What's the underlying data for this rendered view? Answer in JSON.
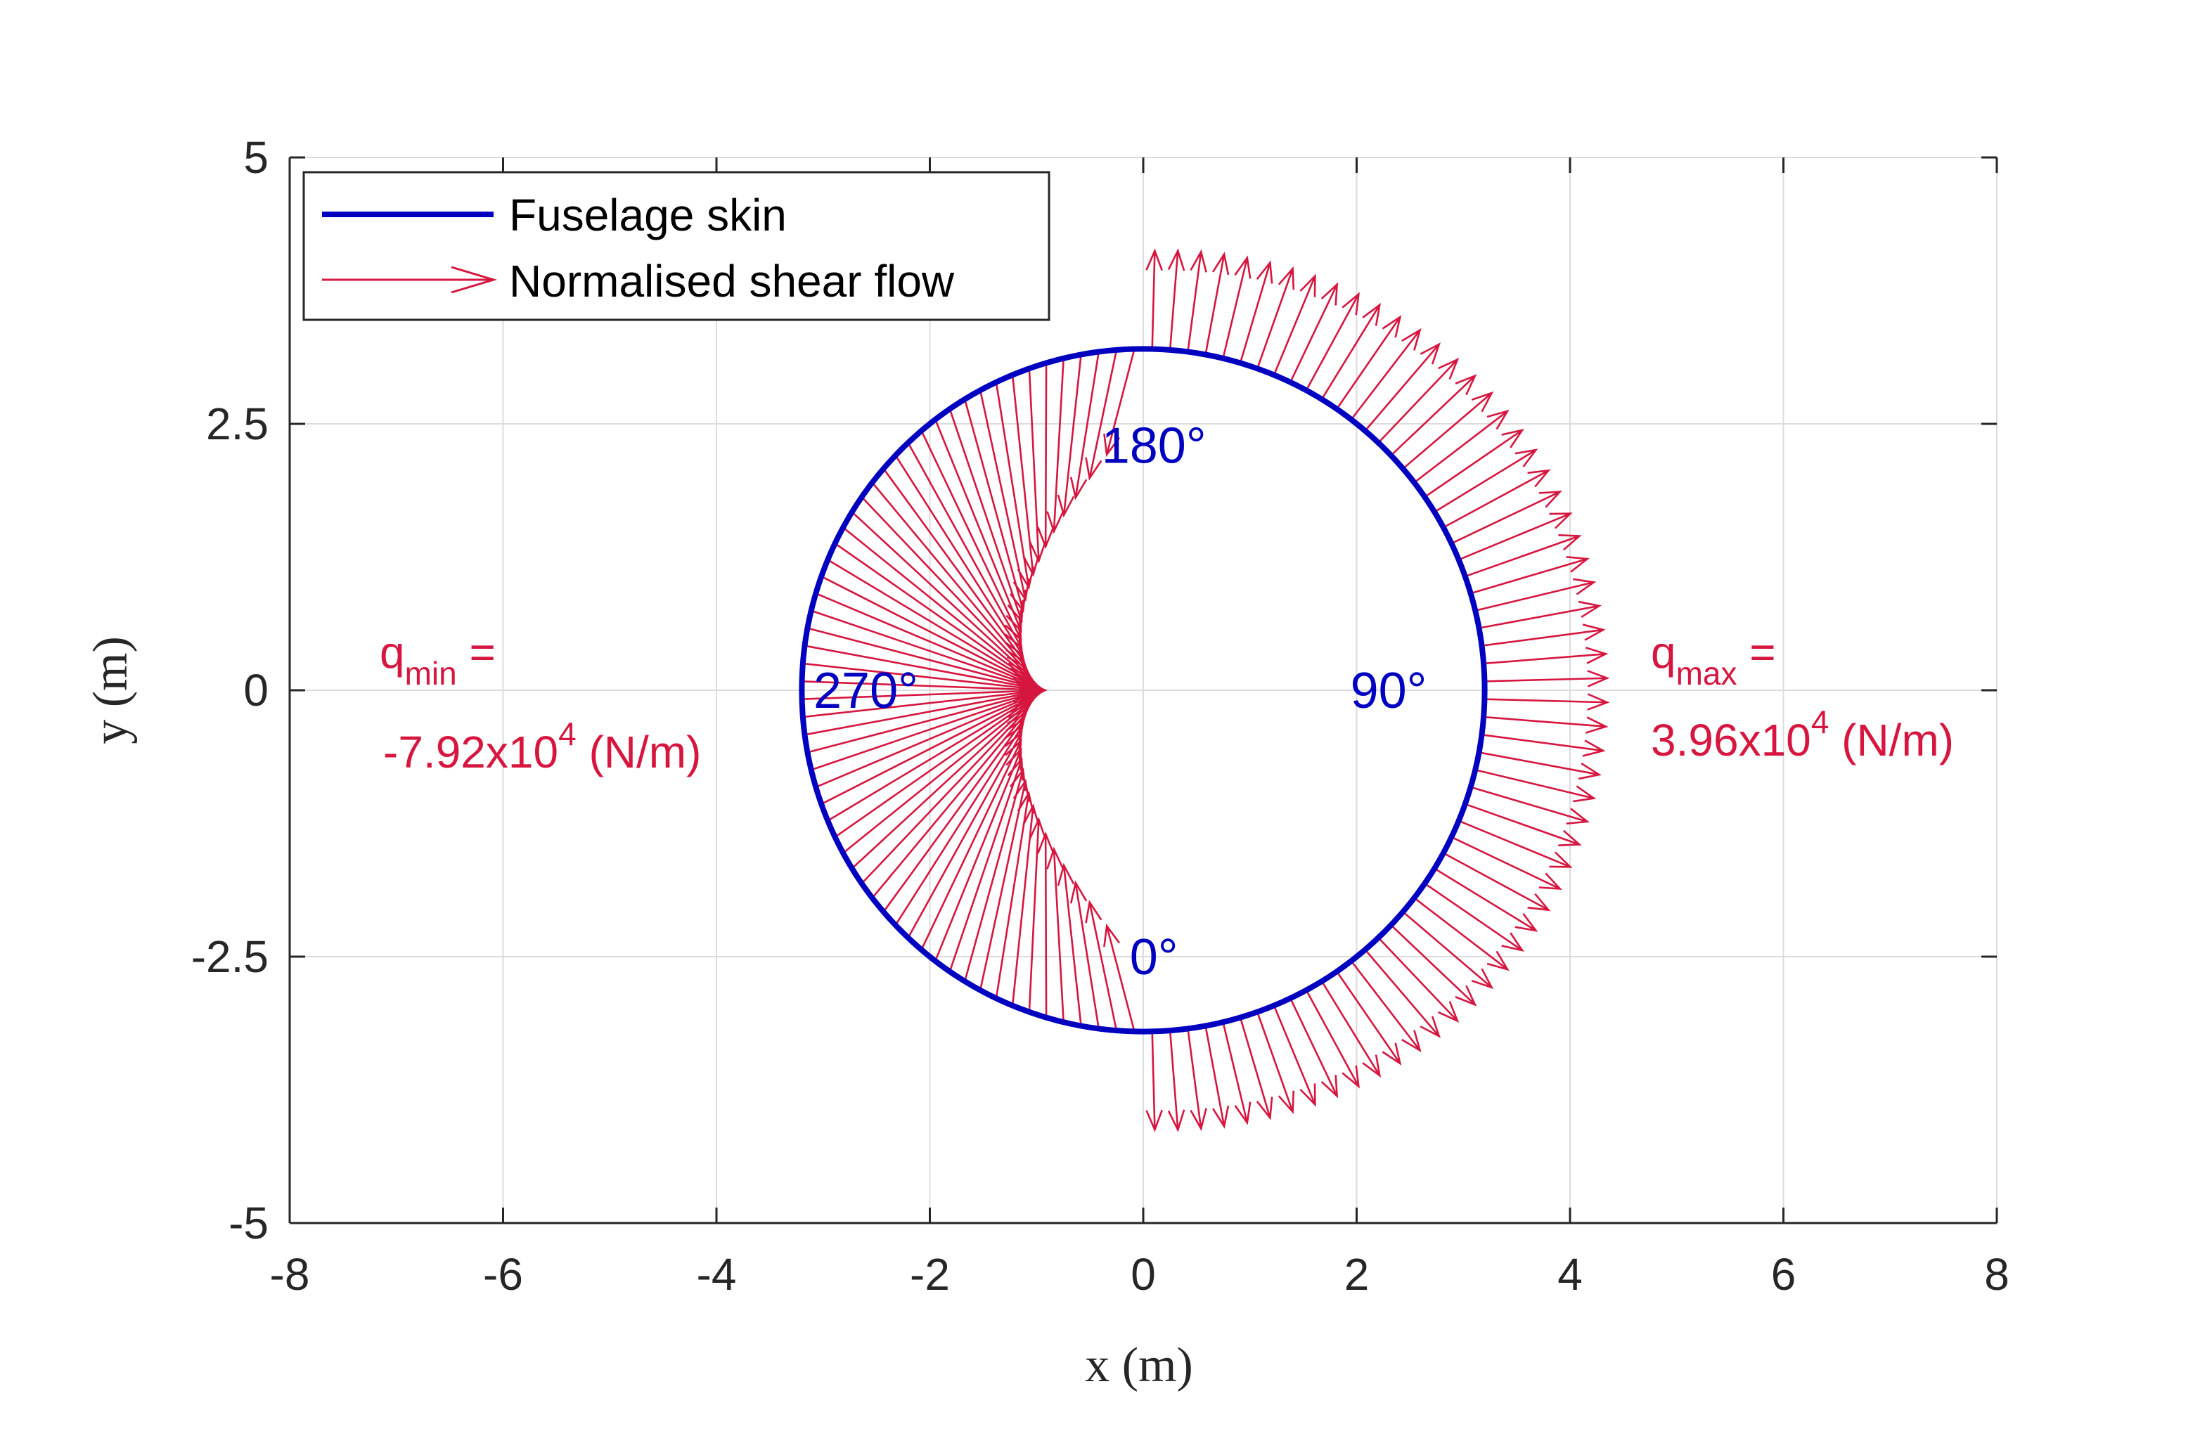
{
  "chart_data": {
    "type": "quiver",
    "xlabel": "x (m)",
    "ylabel": "y (m)",
    "xlim": [
      -8,
      8
    ],
    "ylim": [
      -5,
      5
    ],
    "xticks": [
      -8,
      -6,
      -4,
      -2,
      0,
      2,
      4,
      6,
      8
    ],
    "yticks": [
      -5,
      -2.5,
      0,
      2.5,
      5
    ],
    "xtick_labels": [
      "-8",
      "-6",
      "-4",
      "-2",
      "0",
      "2",
      "4",
      "6",
      "8"
    ],
    "ytick_labels": [
      "-5",
      "-2.5",
      "0",
      "2.5",
      "5"
    ],
    "grid": true,
    "legend": {
      "placement": "top-left",
      "entries": [
        "Fuselage skin",
        "Normalised shear flow"
      ]
    },
    "series": [
      {
        "name": "Fuselage skin",
        "kind": "circle",
        "center": [
          0,
          0
        ],
        "radius": 3.2,
        "color": "#0000C0"
      },
      {
        "name": "Normalised shear flow",
        "kind": "arrows",
        "color": "#D6163F",
        "count": 120,
        "center": [
          -0.92,
          0
        ],
        "outer_reach": 4.35
      }
    ],
    "annotations": {
      "angle_labels": [
        {
          "text": "180°",
          "at": [
            0.1,
            2.3
          ]
        },
        {
          "text": "270°",
          "at": [
            -2.6,
            0
          ]
        },
        {
          "text": "90°",
          "at": [
            2.3,
            0
          ]
        },
        {
          "text": "0°",
          "at": [
            0.1,
            -2.5
          ]
        }
      ],
      "q_min": {
        "symbol": "q",
        "subscript": "min",
        "equals": " =",
        "value": "-7.92x10",
        "exponent": "4",
        "unit": " (N/m)"
      },
      "q_max": {
        "symbol": "q",
        "subscript": "max",
        "equals": " =",
        "value": "3.96x10",
        "exponent": "4",
        "unit": " (N/m)"
      }
    },
    "colors": {
      "skin": "#0000C0",
      "arrows": "#D6163F",
      "grid": "#dcdcdc",
      "axis": "#262626"
    }
  }
}
